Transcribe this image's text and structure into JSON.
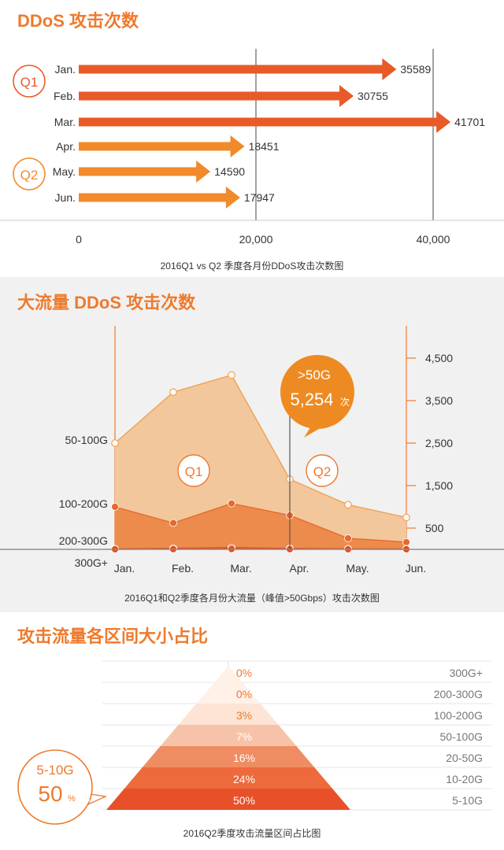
{
  "colors": {
    "accent": "#ee7a2d",
    "q1_bar": "#e85a27",
    "q2_bar": "#f08a2a",
    "area_light": "#f2c79c",
    "area_mid": "#ec8b4c",
    "area_dark": "#e85a22",
    "funnel": [
      "#e8502a",
      "#ec6a3c",
      "#f08c62",
      "#f6c3a8",
      "#fde4d4",
      "#fff1e8",
      "#fff1e8"
    ]
  },
  "panel1": {
    "title": "DDoS 攻击次数",
    "caption": "2016Q1  vs  Q2  季度各月份DDoS攻击次数图",
    "q1_label": "Q1",
    "q2_label": "Q2"
  },
  "panel2": {
    "title": "大流量 DDoS 攻击次数",
    "caption": "2016Q1和Q2季度各月份大流量（峰值>50Gbps）攻击次数图",
    "callout_line1": ">50G",
    "callout_value": "5,254",
    "callout_unit": "次",
    "q1_label": "Q1",
    "q2_label": "Q2"
  },
  "panel3": {
    "title": "攻击流量各区间大小占比",
    "caption": "2016Q2季度攻击流量区间占比图",
    "badge_top": "5-10G",
    "badge_value": "50",
    "badge_unit": "%"
  },
  "chart_data": [
    {
      "type": "bar",
      "title": "DDoS 攻击次数",
      "categories": [
        "Jan.",
        "Feb.",
        "Mar.",
        "Apr.",
        "May.",
        "Jun."
      ],
      "groups": [
        "Q1",
        "Q1",
        "Q1",
        "Q2",
        "Q2",
        "Q2"
      ],
      "values": [
        35589,
        30755,
        41701,
        18451,
        14590,
        17947
      ],
      "value_labels": [
        "35589",
        "30755",
        "41701",
        "18451",
        "14590",
        "17947"
      ],
      "xlim": [
        0,
        45000
      ],
      "ticks": [
        0,
        20000,
        40000
      ],
      "tick_labels": [
        "0",
        "20,000",
        "40,000"
      ],
      "orientation": "horizontal"
    },
    {
      "type": "area",
      "title": "大流量 DDoS 攻击次数",
      "categories": [
        "Jan.",
        "Feb.",
        "Mar.",
        "Apr.",
        "May.",
        "Jun."
      ],
      "series": [
        {
          "name": "50-100G",
          "values": [
            2500,
            3700,
            4100,
            1650,
            1050,
            750
          ]
        },
        {
          "name": "100-200G",
          "values": [
            1000,
            620,
            1080,
            800,
            260,
            170
          ]
        },
        {
          "name": "200-300G",
          "values": [
            10,
            25,
            40,
            20,
            12,
            10
          ]
        },
        {
          "name": "300G+",
          "values": [
            2,
            5,
            8,
            5,
            3,
            2
          ]
        }
      ],
      "ylim": [
        0,
        5000
      ],
      "yticks": [
        500,
        1500,
        2500,
        3500,
        4500
      ],
      "ytick_labels": [
        "500",
        "1,500",
        "2,500",
        "3,500",
        "4,500"
      ],
      "stacked": false
    },
    {
      "type": "bar",
      "title": "攻击流量各区间大小占比",
      "categories": [
        "300G+",
        "200-300G",
        "100-200G",
        "50-100G",
        "20-50G",
        "10-20G",
        "5-10G"
      ],
      "values": [
        0,
        0,
        3,
        7,
        16,
        24,
        50
      ],
      "value_labels": [
        "0%",
        "0%",
        "3%",
        "7%",
        "16%",
        "24%",
        "50%"
      ],
      "unit": "%"
    }
  ]
}
